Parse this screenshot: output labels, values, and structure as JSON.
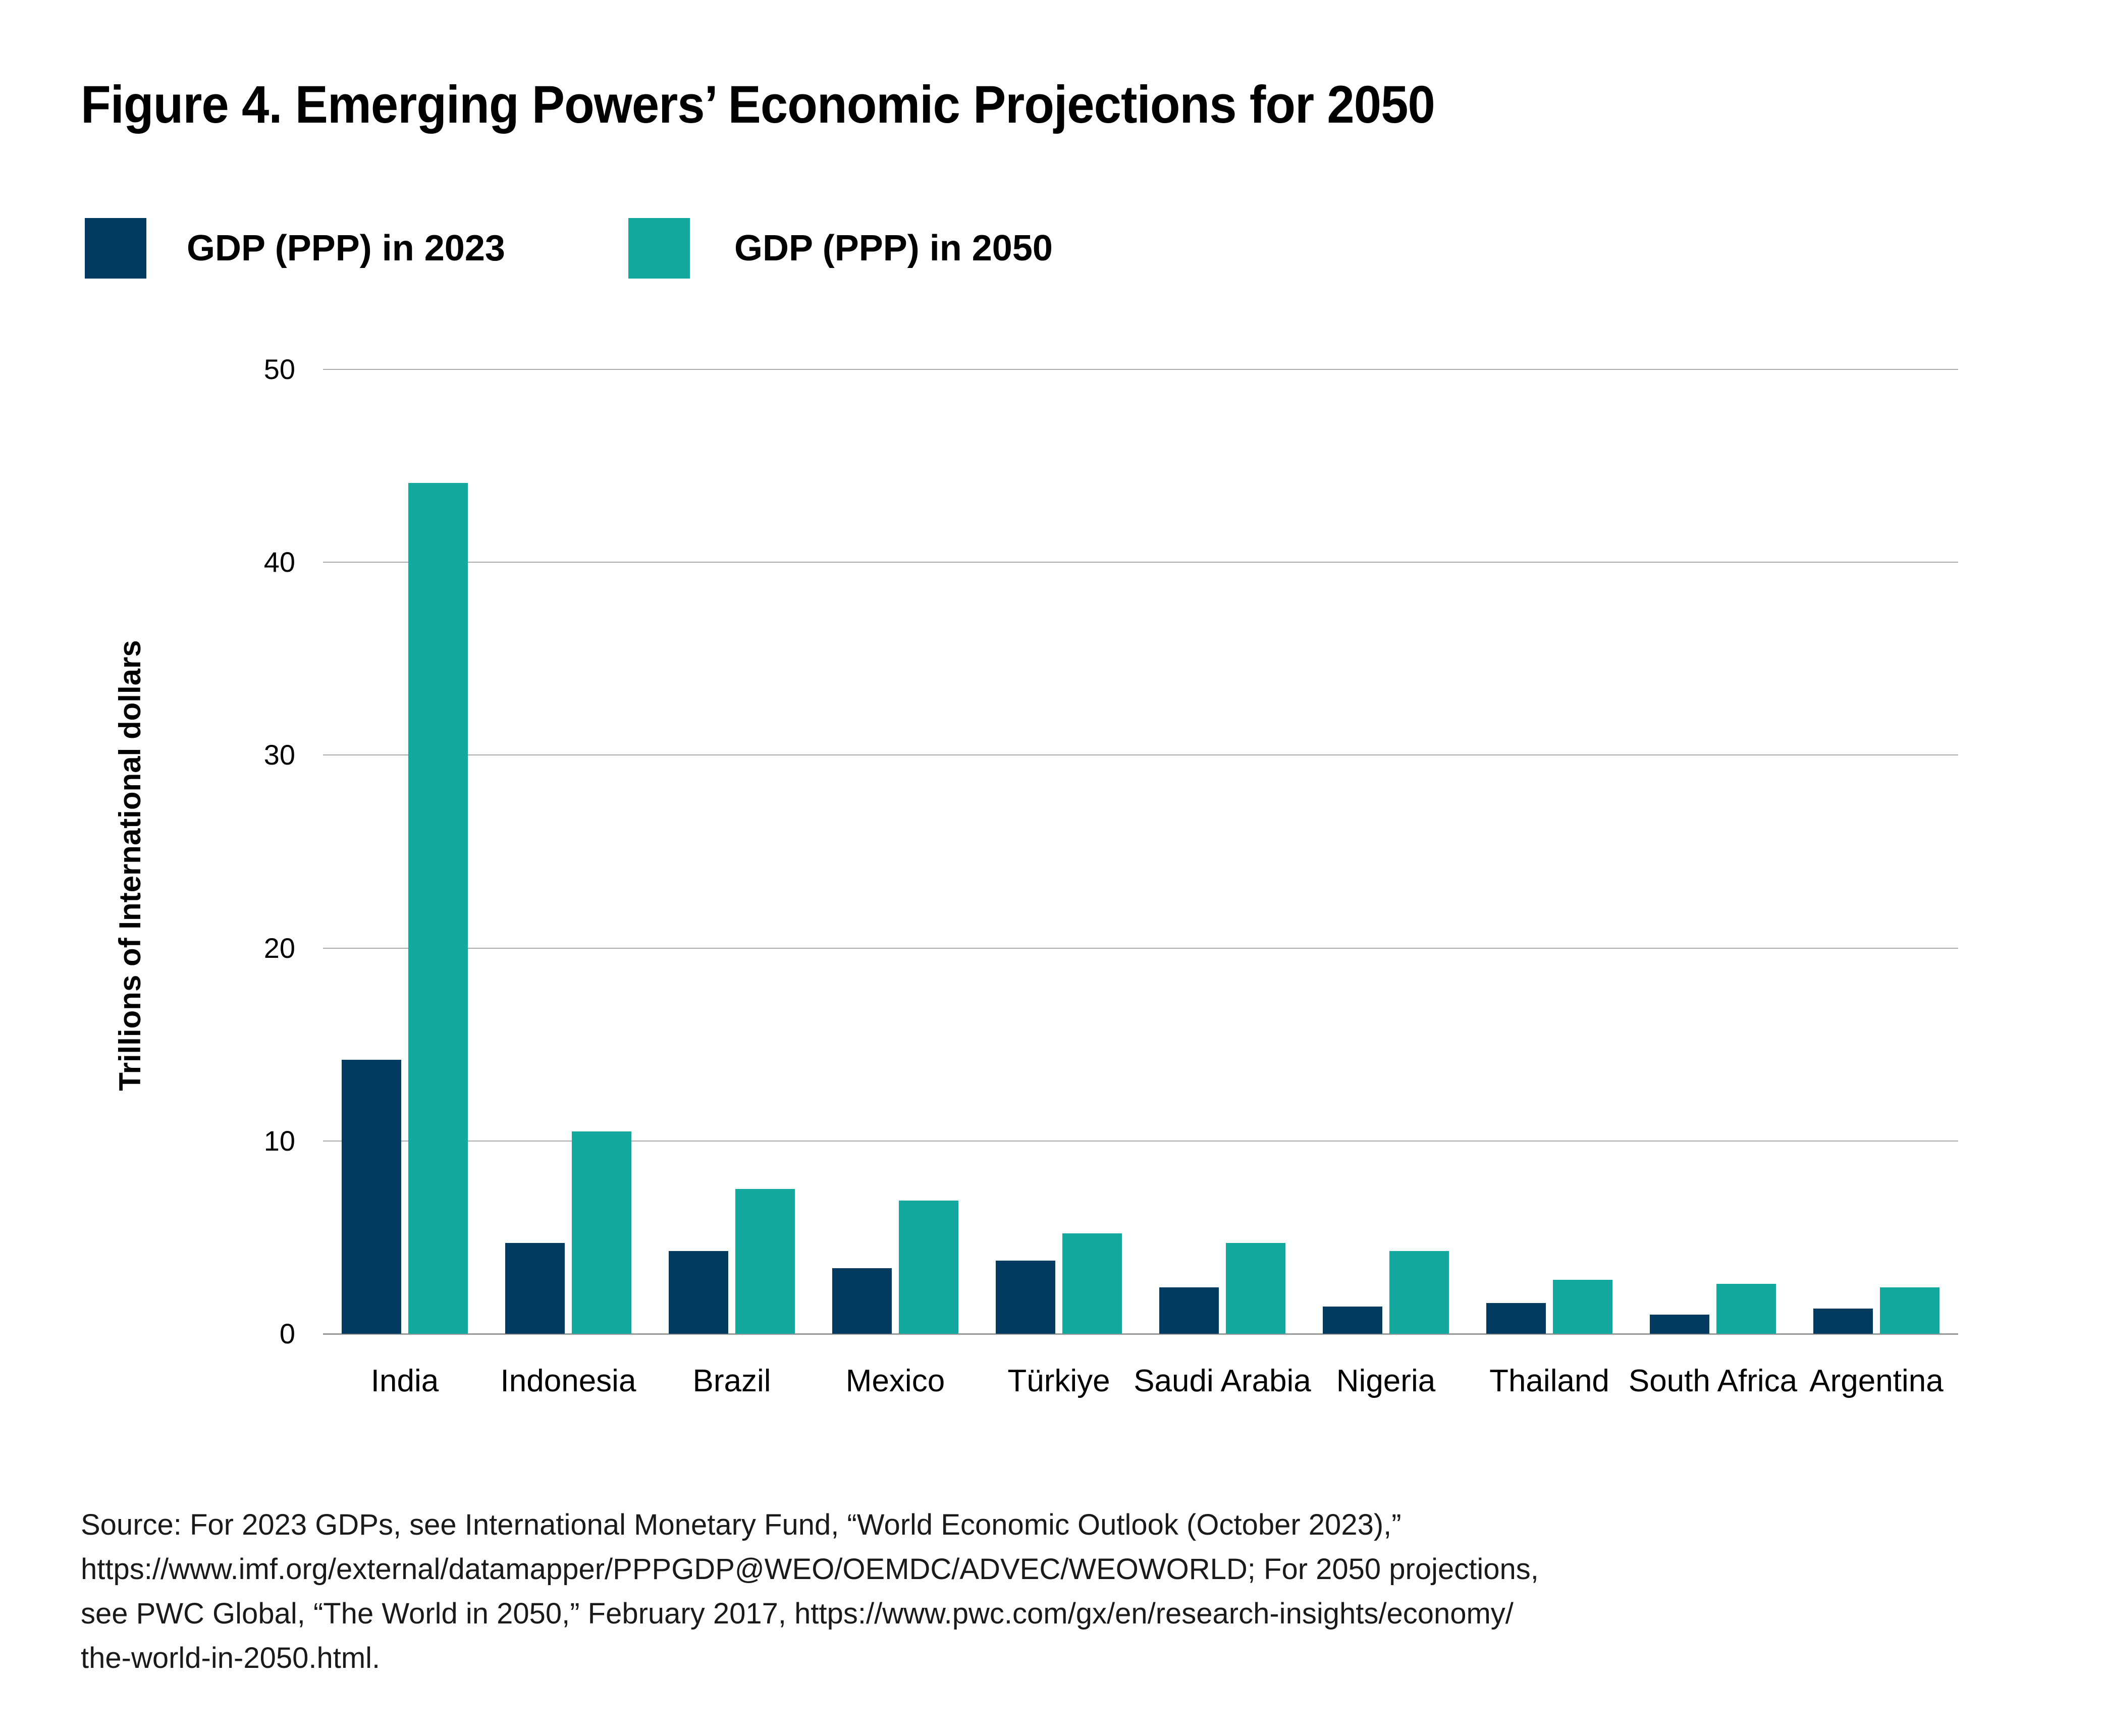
{
  "title": "Figure 4. Emerging Powers’ Economic Projections for 2050",
  "colors": {
    "navy": "#033a60",
    "teal": "#14a89e",
    "gridline": "#ababab",
    "baseline": "#999999",
    "text": "#000000"
  },
  "chart_data": {
    "type": "bar",
    "title": "Figure 4. Emerging Powers’ Economic Projections for 2050",
    "ylabel": "Trillions of International dollars",
    "xlabel": "",
    "ylim": [
      0,
      50
    ],
    "yticks": [
      0,
      10,
      20,
      30,
      40,
      50
    ],
    "grid": true,
    "legend_position": "top",
    "categories": [
      "India",
      "Indonesia",
      "Brazil",
      "Mexico",
      "Türkiye",
      "Saudi Arabia",
      "Nigeria",
      "Thailand",
      "South Africa",
      "Argentina"
    ],
    "series": [
      {
        "name": "GDP (PPP) in 2023",
        "color": "#033a60",
        "values": [
          14.2,
          4.7,
          4.3,
          3.4,
          3.8,
          2.4,
          1.4,
          1.6,
          1.0,
          1.3
        ]
      },
      {
        "name": "GDP (PPP) in 2050",
        "color": "#14a89e",
        "values": [
          44.1,
          10.5,
          7.5,
          6.9,
          5.2,
          4.7,
          4.3,
          2.8,
          2.6,
          2.4
        ]
      }
    ]
  },
  "source_lines": [
    "Source: For 2023 GDPs, see International Monetary Fund, “World Economic Outlook (October 2023),”",
    "https://www.imf.org/external/datamapper/PPPGDP@WEO/OEMDC/ADVEC/WEOWORLD; For 2050 projections,",
    "see PWC Global, “The World in 2050,” February 2017, https://www.pwc.com/gx/en/research-insights/economy/",
    "the-world-in-2050.html."
  ]
}
